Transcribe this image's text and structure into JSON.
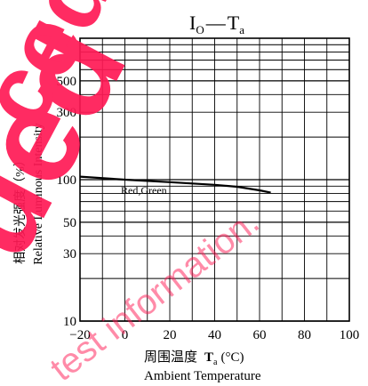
{
  "chart_data": {
    "type": "line",
    "title_main": "I",
    "title_sub": "O",
    "title_dash": "—",
    "title_var": "T",
    "title_var_sub": "a",
    "ylabel_cn": "相对发光强度（%）",
    "ylabel_en": "Relative Luminous Intensity",
    "xlabel_cn": "周围温度",
    "xlabel_var": "T",
    "xlabel_var_sub": "a",
    "xlabel_unit": "(°C)",
    "xlabel_en": "Ambient Temperature",
    "x_scale": "linear",
    "y_scale": "log",
    "xlim": [
      -20,
      100
    ],
    "ylim": [
      10,
      1000
    ],
    "x_ticks": [
      -20,
      0,
      20,
      40,
      60,
      80,
      100
    ],
    "y_ticks": [
      10,
      30,
      50,
      100,
      300,
      500
    ],
    "grid": true,
    "series": [
      {
        "name": "Red,Green",
        "x": [
          -20,
          0,
          20,
          40,
          50,
          60,
          65
        ],
        "y": [
          105,
          100,
          96,
          92,
          89,
          84,
          81
        ]
      }
    ]
  },
  "watermark": {
    "big_text": "ued",
    "left_text": "ced",
    "small_text": "test information."
  },
  "colors": {
    "watermark": "#ff1a55",
    "line": "#000000",
    "grid": "#000000"
  }
}
